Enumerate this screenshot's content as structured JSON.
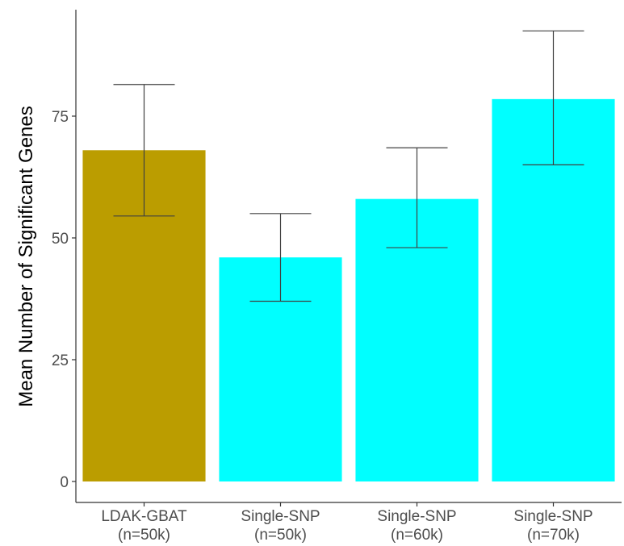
{
  "chart_data": {
    "type": "bar",
    "ylabel": "Mean Number of Significant Genes",
    "xlabel": "",
    "ylim": [
      0,
      90
    ],
    "yticks": [
      0,
      25,
      50,
      75
    ],
    "ytick_labels": [
      "0",
      "25",
      "50",
      "75"
    ],
    "categories": [
      {
        "line1": "LDAK-GBAT",
        "line2": "(n=50k)"
      },
      {
        "line1": "Single-SNP",
        "line2": "(n=50k)"
      },
      {
        "line1": "Single-SNP",
        "line2": "(n=60k)"
      },
      {
        "line1": "Single-SNP",
        "line2": "(n=70k)"
      }
    ],
    "values": [
      68,
      46,
      58,
      78.5
    ],
    "error_lower": [
      54.5,
      37,
      48,
      65
    ],
    "error_upper": [
      81.5,
      55,
      68.5,
      92.5
    ],
    "colors": [
      "#BB9D00",
      "#00FFFF",
      "#00FFFF",
      "#00FFFF"
    ],
    "error_bar_color": "#404040",
    "grid": false
  }
}
